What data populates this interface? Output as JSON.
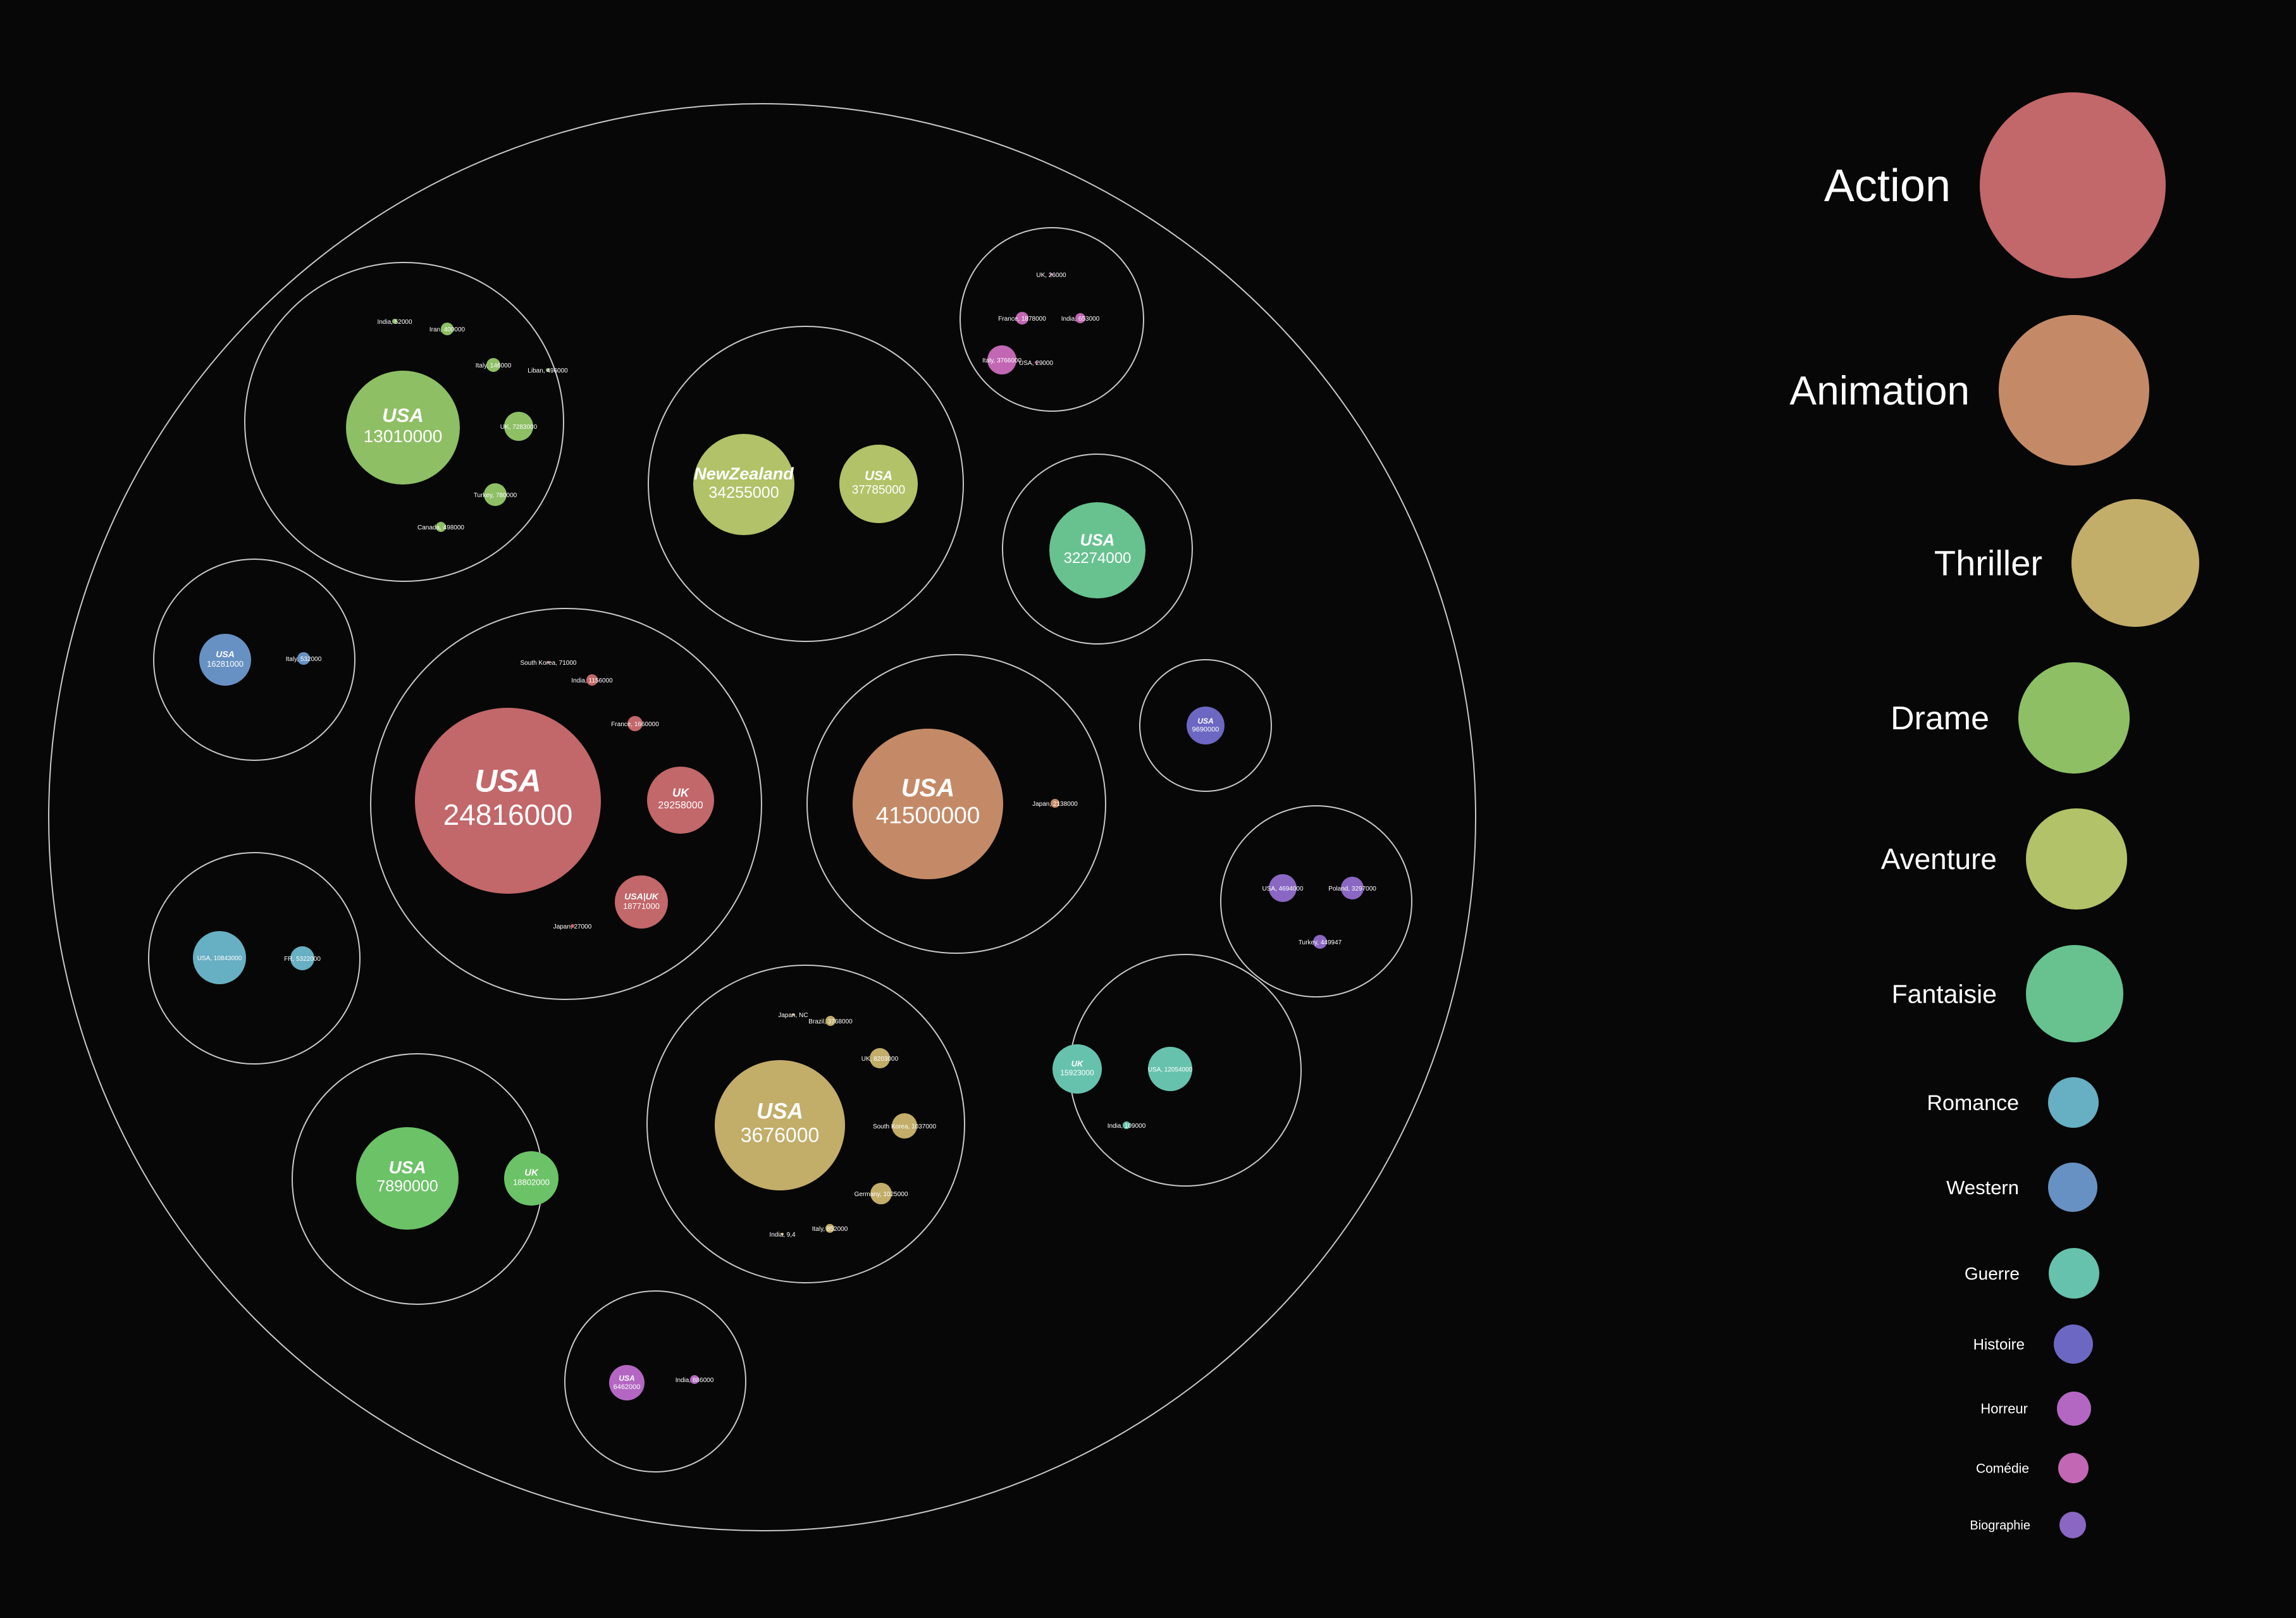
{
  "colors": {
    "background": "#070707",
    "outline": "#c8c8c8",
    "Action": "#c2676a",
    "Animation": "#c48a67",
    "Thriller": "#c2ad69",
    "Drame": "#8ebf64",
    "Drame2": "#6cc267",
    "Aventure": "#b1c268",
    "Fantaisie": "#67c290",
    "Romance": "#67afc2",
    "Western": "#6791c2",
    "Guerre": "#67c2ad",
    "Histoire": "#6c67c2",
    "Horreur": "#b367c2",
    "Comedie": "#c267b4",
    "Biographie": "#8a67c2"
  },
  "legend": [
    {
      "label": "Action",
      "color": "#c2676a"
    },
    {
      "label": "Animation",
      "color": "#c48a67"
    },
    {
      "label": "Thriller",
      "color": "#c2ad69"
    },
    {
      "label": "Drame",
      "color": "#8ebf64"
    },
    {
      "label": "Aventure",
      "color": "#b1c268"
    },
    {
      "label": "Fantaisie",
      "color": "#67c290"
    },
    {
      "label": "Romance",
      "color": "#67afc2"
    },
    {
      "label": "Western",
      "color": "#6791c2"
    },
    {
      "label": "Guerre",
      "color": "#67c2ad"
    },
    {
      "label": "Histoire",
      "color": "#6c67c2"
    },
    {
      "label": "Horreur",
      "color": "#b367c2"
    },
    {
      "label": "Comédie",
      "color": "#c267b4"
    },
    {
      "label": "Biographie",
      "color": "#8a67c2"
    }
  ],
  "chart_data": {
    "type": "circle-packing",
    "title": "",
    "groups": [
      {
        "genre": "Action",
        "items": [
          {
            "country": "USA",
            "value": "24816000"
          },
          {
            "country": "UK",
            "value": "29258000"
          },
          {
            "country": "USA|UK",
            "value": "18771000"
          },
          {
            "country": "South Korea",
            "value": "71000"
          },
          {
            "country": "India",
            "value": "1156000"
          },
          {
            "country": "France",
            "value": "1660000"
          },
          {
            "country": "Japan",
            "value": "27000"
          }
        ]
      },
      {
        "genre": "Animation",
        "items": [
          {
            "country": "USA",
            "value": "41500000"
          },
          {
            "country": "Japan",
            "value": "2138000"
          }
        ]
      },
      {
        "genre": "Thriller",
        "items": [
          {
            "country": "USA",
            "value": "3676000"
          },
          {
            "country": "Japan",
            "value": "NC"
          },
          {
            "country": "Brazil",
            "value": "3768000"
          },
          {
            "country": "UK",
            "value": "8203000"
          },
          {
            "country": "South Korea",
            "value": "1037000"
          },
          {
            "country": "Germany",
            "value": "1025000"
          },
          {
            "country": "Italy",
            "value": "852000"
          },
          {
            "country": "India",
            "value": "9,4"
          }
        ]
      },
      {
        "genre": "Drame",
        "items": [
          {
            "country": "USA",
            "value": "13010000"
          },
          {
            "country": "UK",
            "value": "7283000"
          },
          {
            "country": "Turkey",
            "value": "780000"
          },
          {
            "country": "Italy",
            "value": "146000"
          },
          {
            "country": "Iran",
            "value": "400000"
          },
          {
            "country": "India",
            "value": "52000"
          },
          {
            "country": "Liban",
            "value": "496000"
          },
          {
            "country": "Canada",
            "value": "498000"
          }
        ]
      },
      {
        "genre": "Drame",
        "items": [
          {
            "country": "USA",
            "value": "7890000"
          },
          {
            "country": "UK",
            "value": "18802000"
          }
        ]
      },
      {
        "genre": "Aventure",
        "items": [
          {
            "country": "NewZealand",
            "value": "34255000"
          },
          {
            "country": "USA",
            "value": "37785000"
          }
        ]
      },
      {
        "genre": "Fantaisie",
        "items": [
          {
            "country": "USA",
            "value": "32274000"
          }
        ]
      },
      {
        "genre": "Western",
        "items": [
          {
            "country": "USA",
            "value": "16281000"
          },
          {
            "country": "Italy",
            "value": "532000"
          }
        ]
      },
      {
        "genre": "Romance",
        "items": [
          {
            "country": "USA",
            "value": "10843000"
          },
          {
            "country": "FR",
            "value": "5322000"
          }
        ]
      },
      {
        "genre": "Comédie",
        "items": [
          {
            "country": "UK",
            "value": "26000"
          },
          {
            "country": "France",
            "value": "1878000"
          },
          {
            "country": "India",
            "value": "653000"
          },
          {
            "country": "Italy",
            "value": "3766000"
          },
          {
            "country": "USA",
            "value": "29000"
          }
        ]
      },
      {
        "genre": "Histoire",
        "items": [
          {
            "country": "USA",
            "value": "9690000"
          }
        ]
      },
      {
        "genre": "Biographie",
        "items": [
          {
            "country": "USA",
            "value": "4694000"
          },
          {
            "country": "Poland",
            "value": "3297000"
          },
          {
            "country": "Turkey",
            "value": "449947"
          }
        ]
      },
      {
        "genre": "Guerre",
        "items": [
          {
            "country": "UK",
            "value": "15923000"
          },
          {
            "country": "USA",
            "value": "12054000"
          },
          {
            "country": "India",
            "value": "109000"
          }
        ]
      },
      {
        "genre": "Horreur",
        "items": [
          {
            "country": "USA",
            "value": "6462000"
          },
          {
            "country": "India",
            "value": "886000"
          }
        ]
      }
    ]
  }
}
